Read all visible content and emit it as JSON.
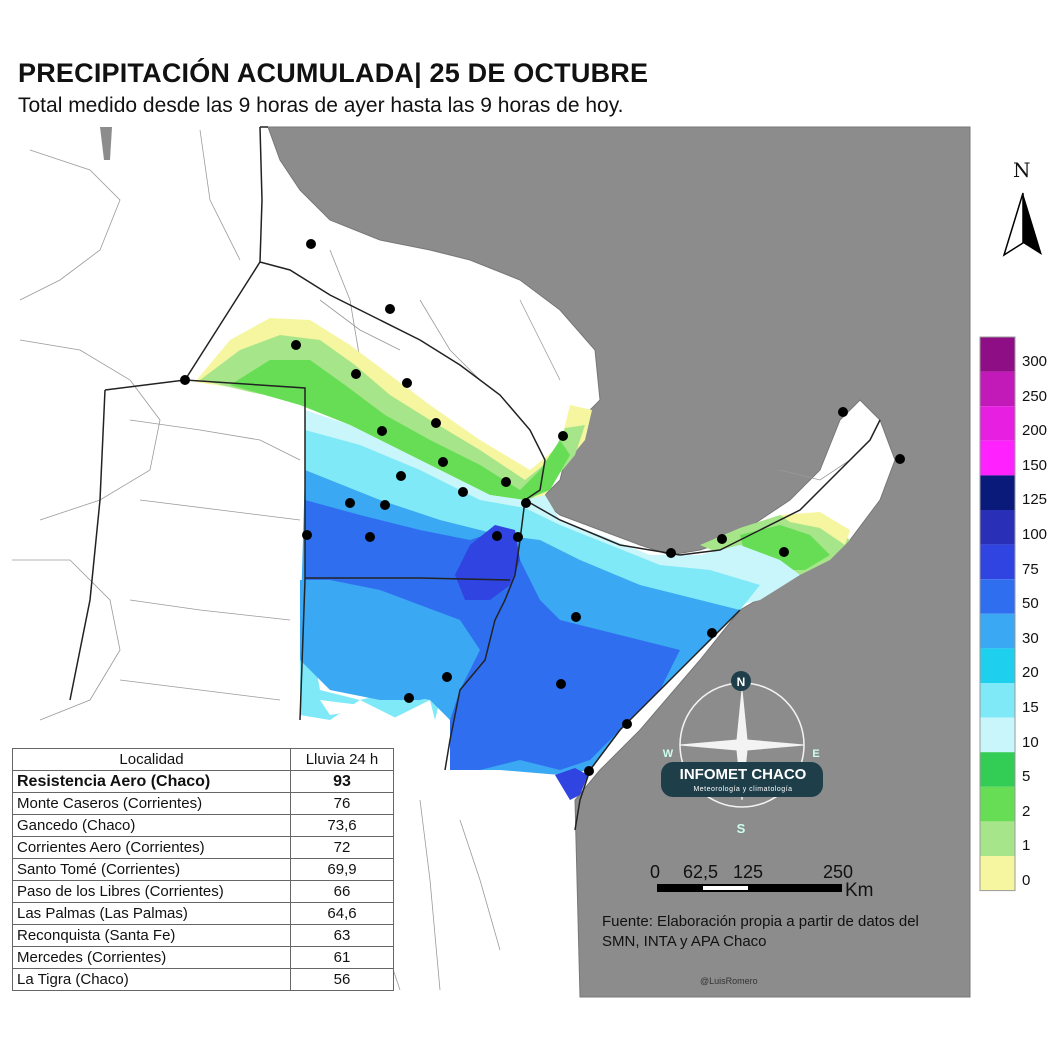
{
  "header": {
    "title": "PRECIPITACIÓN ACUMULADA| 25 DE OCTUBRE",
    "subtitle": "Total medido desde las 9 horas de ayer hasta las 9 horas de hoy."
  },
  "table": {
    "headers": [
      "Localidad",
      "Lluvia 24 h"
    ],
    "rows": [
      {
        "name": "Resistencia Aero (Chaco)",
        "value": "93",
        "highlight": true
      },
      {
        "name": "Monte Caseros (Corrientes)",
        "value": "76"
      },
      {
        "name": "Gancedo (Chaco)",
        "value": "73,6"
      },
      {
        "name": "Corrientes Aero (Corrientes)",
        "value": "72"
      },
      {
        "name": "Santo Tomé (Corrientes)",
        "value": "69,9"
      },
      {
        "name": "Paso de los Libres (Corrientes)",
        "value": "66"
      },
      {
        "name": "Las Palmas (Las Palmas)",
        "value": "64,6"
      },
      {
        "name": "Reconquista (Santa Fe)",
        "value": "63"
      },
      {
        "name": "Mercedes (Corrientes)",
        "value": "61"
      },
      {
        "name": "La Tigra (Chaco)",
        "value": "56"
      }
    ]
  },
  "colorbar": {
    "labels": [
      "300",
      "250",
      "200",
      "150",
      "125",
      "100",
      "75",
      "50",
      "30",
      "20",
      "15",
      "10",
      "5",
      "2",
      "1",
      "0"
    ],
    "colors": [
      "#8e0e86",
      "#c21ab8",
      "#e61fe0",
      "#ff22ff",
      "#0a1a7a",
      "#2a2fb8",
      "#2f44e0",
      "#2f6fef",
      "#3aa8f2",
      "#1fd0ee",
      "#7fe9f7",
      "#c8f6fb",
      "#33cc55",
      "#66dd55",
      "#a7e58a",
      "#f6f6a0"
    ]
  },
  "scale_bar": {
    "labels": [
      "0",
      "62,5",
      "125",
      "250"
    ],
    "unit": "Km"
  },
  "north_arrow": {
    "letter": "N"
  },
  "logo": {
    "name": "INFOMET CHACO",
    "tagline": "Meteorología y climatología",
    "compass_letters": [
      "N",
      "S",
      "W",
      "E"
    ]
  },
  "source": "Fuente: Elaboración propia a partir de datos del SMN, INTA y APA Chaco",
  "credit": "@LuisRomero",
  "colors": {
    "neighbor_gray": "#8c8c8c",
    "land": "#ffffff",
    "border": "#222222"
  }
}
